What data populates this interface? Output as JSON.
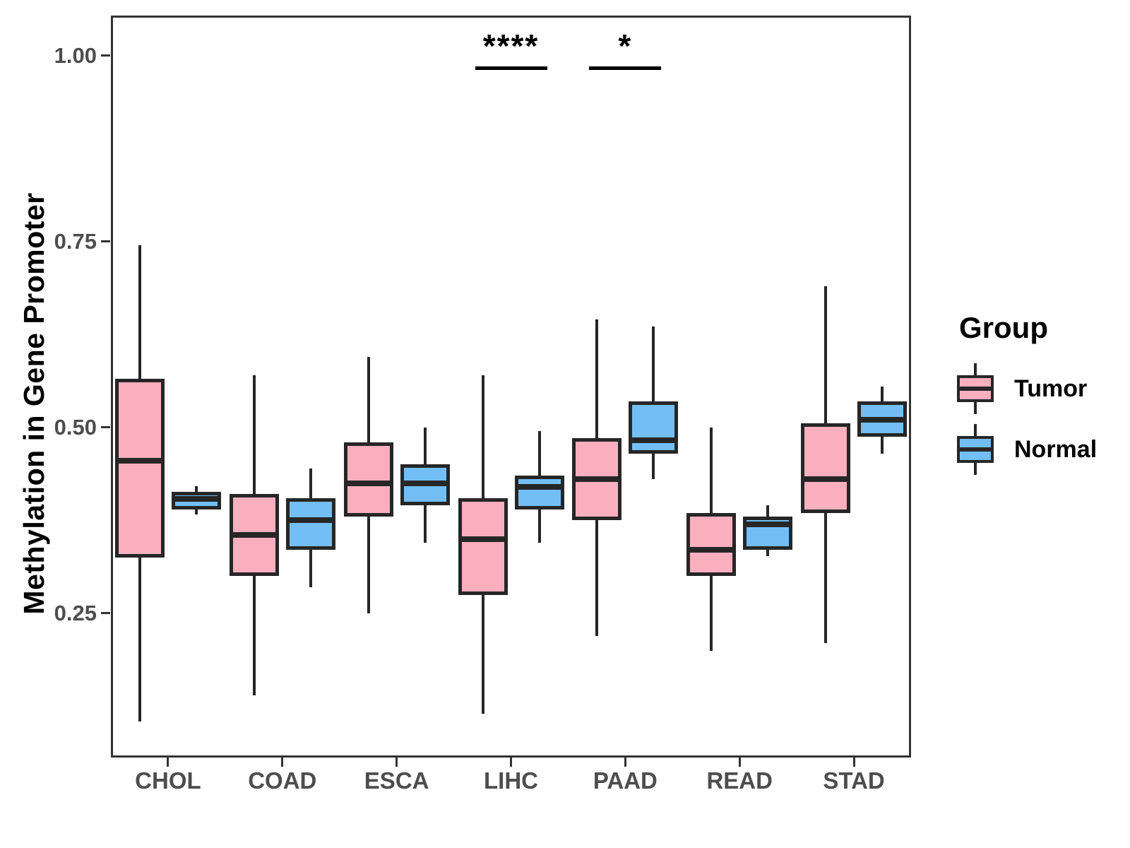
{
  "figure": {
    "background": "#ffffff"
  },
  "legend": {
    "title": "Group",
    "items": [
      {
        "label": "Tumor",
        "color": "#FAAFBF"
      },
      {
        "label": "Normal",
        "color": "#73BFF5"
      }
    ]
  },
  "chart_data": {
    "type": "boxplot",
    "title": "",
    "xlabel": "",
    "ylabel": "Methylation in Gene Promoter",
    "categories": [
      "CHOL",
      "COAD",
      "ESCA",
      "LIHC",
      "PAAD",
      "READ",
      "STAD"
    ],
    "y_axis": {
      "ticks": [
        1.0,
        0.75,
        0.5,
        0.25
      ],
      "tick_labels": [
        "1.00",
        "0.75",
        "0.50",
        "0.25"
      ],
      "range_shown": [
        0.06,
        1.05
      ],
      "grid": false
    },
    "legend_position": "right",
    "stroke_color": "#262626",
    "series": [
      {
        "name": "Tumor",
        "color": "#FAAFBF",
        "boxes": [
          {
            "category": "CHOL",
            "low": 0.105,
            "q1": 0.325,
            "median": 0.455,
            "q3": 0.565,
            "high": 0.745
          },
          {
            "category": "COAD",
            "low": 0.14,
            "q1": 0.3,
            "median": 0.355,
            "q3": 0.41,
            "high": 0.57
          },
          {
            "category": "ESCA",
            "low": 0.25,
            "q1": 0.38,
            "median": 0.425,
            "q3": 0.48,
            "high": 0.595
          },
          {
            "category": "LIHC",
            "low": 0.115,
            "q1": 0.275,
            "median": 0.35,
            "q3": 0.405,
            "high": 0.57
          },
          {
            "category": "PAAD",
            "low": 0.22,
            "q1": 0.375,
            "median": 0.43,
            "q3": 0.485,
            "high": 0.645
          },
          {
            "category": "READ",
            "low": 0.2,
            "q1": 0.3,
            "median": 0.335,
            "q3": 0.385,
            "high": 0.5
          },
          {
            "category": "STAD",
            "low": 0.21,
            "q1": 0.385,
            "median": 0.43,
            "q3": 0.505,
            "high": 0.69
          }
        ]
      },
      {
        "name": "Normal",
        "color": "#73BFF5",
        "boxes": [
          {
            "category": "CHOL",
            "low": 0.383,
            "q1": 0.39,
            "median": 0.404,
            "q3": 0.413,
            "high": 0.421
          },
          {
            "category": "COAD",
            "low": 0.285,
            "q1": 0.335,
            "median": 0.375,
            "q3": 0.405,
            "high": 0.445
          },
          {
            "category": "ESCA",
            "low": 0.345,
            "q1": 0.395,
            "median": 0.425,
            "q3": 0.45,
            "high": 0.5
          },
          {
            "category": "LIHC",
            "low": 0.345,
            "q1": 0.39,
            "median": 0.42,
            "q3": 0.435,
            "high": 0.495
          },
          {
            "category": "PAAD",
            "low": 0.43,
            "q1": 0.465,
            "median": 0.483,
            "q3": 0.535,
            "high": 0.635
          },
          {
            "category": "READ",
            "low": 0.327,
            "q1": 0.335,
            "median": 0.37,
            "q3": 0.38,
            "high": 0.395
          },
          {
            "category": "STAD",
            "low": 0.465,
            "q1": 0.487,
            "median": 0.51,
            "q3": 0.535,
            "high": 0.555
          }
        ]
      }
    ],
    "significance": [
      {
        "category": "LIHC",
        "label": "****",
        "bar_value": 0.985
      },
      {
        "category": "PAAD",
        "label": "*",
        "bar_value": 0.985
      }
    ]
  }
}
